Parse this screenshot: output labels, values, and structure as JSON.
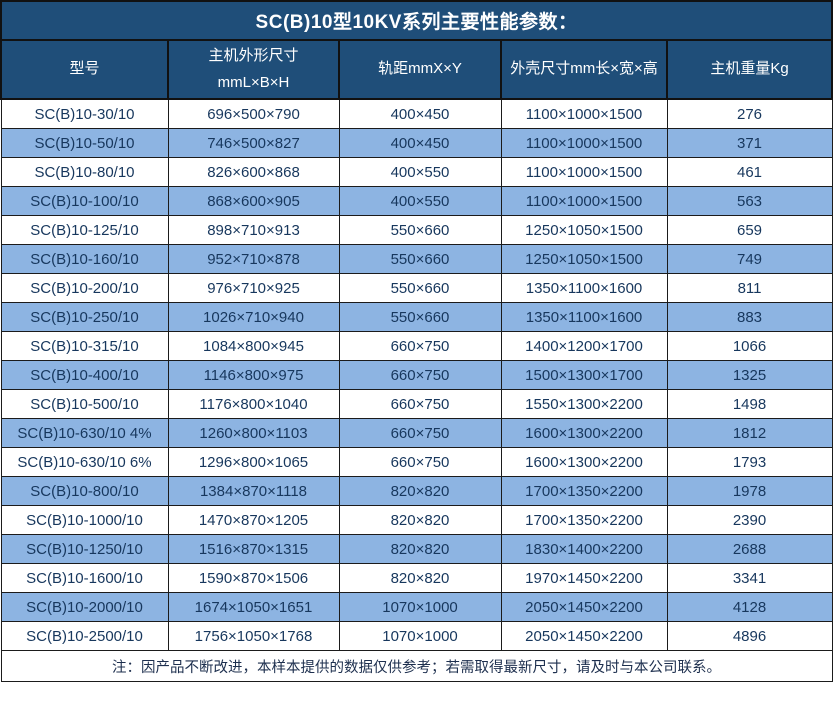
{
  "title": "SC(B)10型10KV系列主要性能参数：",
  "colors": {
    "header_bg": "#1F4E79",
    "alt_row_bg": "#8DB4E2",
    "row_bg": "#FFFFFF",
    "border": "#1B1B1B",
    "header_text": "#FFFFFF",
    "data_text": "#17375D"
  },
  "table": {
    "headers": [
      {
        "line1": "型号",
        "line2": ""
      },
      {
        "line1": "主机外形尺寸",
        "line2": "mmL×B×H"
      },
      {
        "line1": "轨距mmX×Y",
        "line2": ""
      },
      {
        "line1": "外壳尺寸mm长×宽×高",
        "line2": ""
      },
      {
        "line1": "主机重量Kg",
        "line2": ""
      }
    ],
    "rows": [
      [
        "SC(B)10-30/10",
        "696×500×790",
        "400×450",
        "1100×1000×1500",
        "276"
      ],
      [
        "SC(B)10-50/10",
        "746×500×827",
        "400×450",
        "1100×1000×1500",
        "371"
      ],
      [
        "SC(B)10-80/10",
        "826×600×868",
        "400×550",
        "1100×1000×1500",
        "461"
      ],
      [
        "SC(B)10-100/10",
        "868×600×905",
        "400×550",
        "1100×1000×1500",
        "563"
      ],
      [
        "SC(B)10-125/10",
        "898×710×913",
        "550×660",
        "1250×1050×1500",
        "659"
      ],
      [
        "SC(B)10-160/10",
        "952×710×878",
        "550×660",
        "1250×1050×1500",
        "749"
      ],
      [
        "SC(B)10-200/10",
        "976×710×925",
        "550×660",
        "1350×1100×1600",
        "811"
      ],
      [
        "SC(B)10-250/10",
        "1026×710×940",
        "550×660",
        "1350×1100×1600",
        "883"
      ],
      [
        "SC(B)10-315/10",
        "1084×800×945",
        "660×750",
        "1400×1200×1700",
        "1066"
      ],
      [
        "SC(B)10-400/10",
        "1146×800×975",
        "660×750",
        "1500×1300×1700",
        "1325"
      ],
      [
        "SC(B)10-500/10",
        "1176×800×1040",
        "660×750",
        "1550×1300×2200",
        "1498"
      ],
      [
        "SC(B)10-630/10 4%",
        "1260×800×1103",
        "660×750",
        "1600×1300×2200",
        "1812"
      ],
      [
        "SC(B)10-630/10 6%",
        "1296×800×1065",
        "660×750",
        "1600×1300×2200",
        "1793"
      ],
      [
        "SC(B)10-800/10",
        "1384×870×1118",
        "820×820",
        "1700×1350×2200",
        "1978"
      ],
      [
        "SC(B)10-1000/10",
        "1470×870×1205",
        "820×820",
        "1700×1350×2200",
        "2390"
      ],
      [
        "SC(B)10-1250/10",
        "1516×870×1315",
        "820×820",
        "1830×1400×2200",
        "2688"
      ],
      [
        "SC(B)10-1600/10",
        "1590×870×1506",
        "820×820",
        "1970×1450×2200",
        "3341"
      ],
      [
        "SC(B)10-2000/10",
        "1674×1050×1651",
        "1070×1000",
        "2050×1450×2200",
        "4128"
      ],
      [
        "SC(B)10-2500/10",
        "1756×1050×1768",
        "1070×1000",
        "2050×1450×2200",
        "4896"
      ]
    ],
    "note": "注：因产品不断改进，本样本提供的数据仅供参考；若需取得最新尺寸，请及时与本公司联系。"
  }
}
